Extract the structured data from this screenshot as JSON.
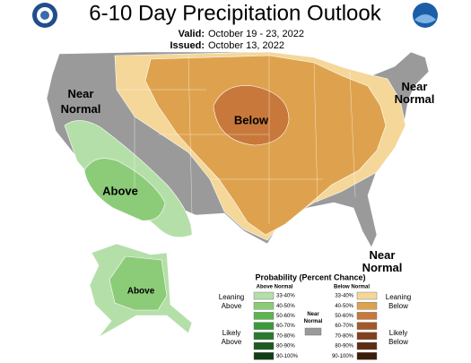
{
  "header": {
    "title": "6-10 Day Precipitation Outlook",
    "valid_label": "Valid:",
    "valid": "October 19 - 23, 2022",
    "issued_label": "Issued:",
    "issued": "October 13, 2022"
  },
  "map_labels": {
    "west": [
      "Near",
      "Normal"
    ],
    "northeast": [
      "Near",
      "Normal"
    ],
    "southeast": [
      "Near",
      "Normal"
    ],
    "below": "Below",
    "above": "Above",
    "alaska": "Above"
  },
  "legend": {
    "title": "Probability (Percent Chance)",
    "above_header": "Above Normal",
    "below_header": "Below Normal",
    "leaning_above": [
      "Leaning",
      "Above"
    ],
    "likely_above": [
      "Likely",
      "Above"
    ],
    "leaning_below": [
      "Leaning",
      "Below"
    ],
    "likely_below": [
      "Likely",
      "Below"
    ],
    "near": {
      "label": [
        "Near",
        "Normal"
      ],
      "color": "#9a9a9a"
    },
    "above": [
      {
        "label": "33-40%",
        "color": "#b5dfa9"
      },
      {
        "label": "40-50%",
        "color": "#8ccc78"
      },
      {
        "label": "50-60%",
        "color": "#5bb54c"
      },
      {
        "label": "60-70%",
        "color": "#3a9a3a"
      },
      {
        "label": "70-80%",
        "color": "#2a7a2e"
      },
      {
        "label": "80-90%",
        "color": "#1e5a22"
      },
      {
        "label": "90-100%",
        "color": "#123e16"
      }
    ],
    "below": [
      {
        "label": "33-40%",
        "color": "#f4d799"
      },
      {
        "label": "40-50%",
        "color": "#dea24e"
      },
      {
        "label": "50-60%",
        "color": "#c8783a"
      },
      {
        "label": "60-70%",
        "color": "#a4582a"
      },
      {
        "label": "70-80%",
        "color": "#83401e"
      },
      {
        "label": "80-90%",
        "color": "#5e2c14"
      },
      {
        "label": "90-100%",
        "color": "#3e1c0c"
      }
    ]
  }
}
